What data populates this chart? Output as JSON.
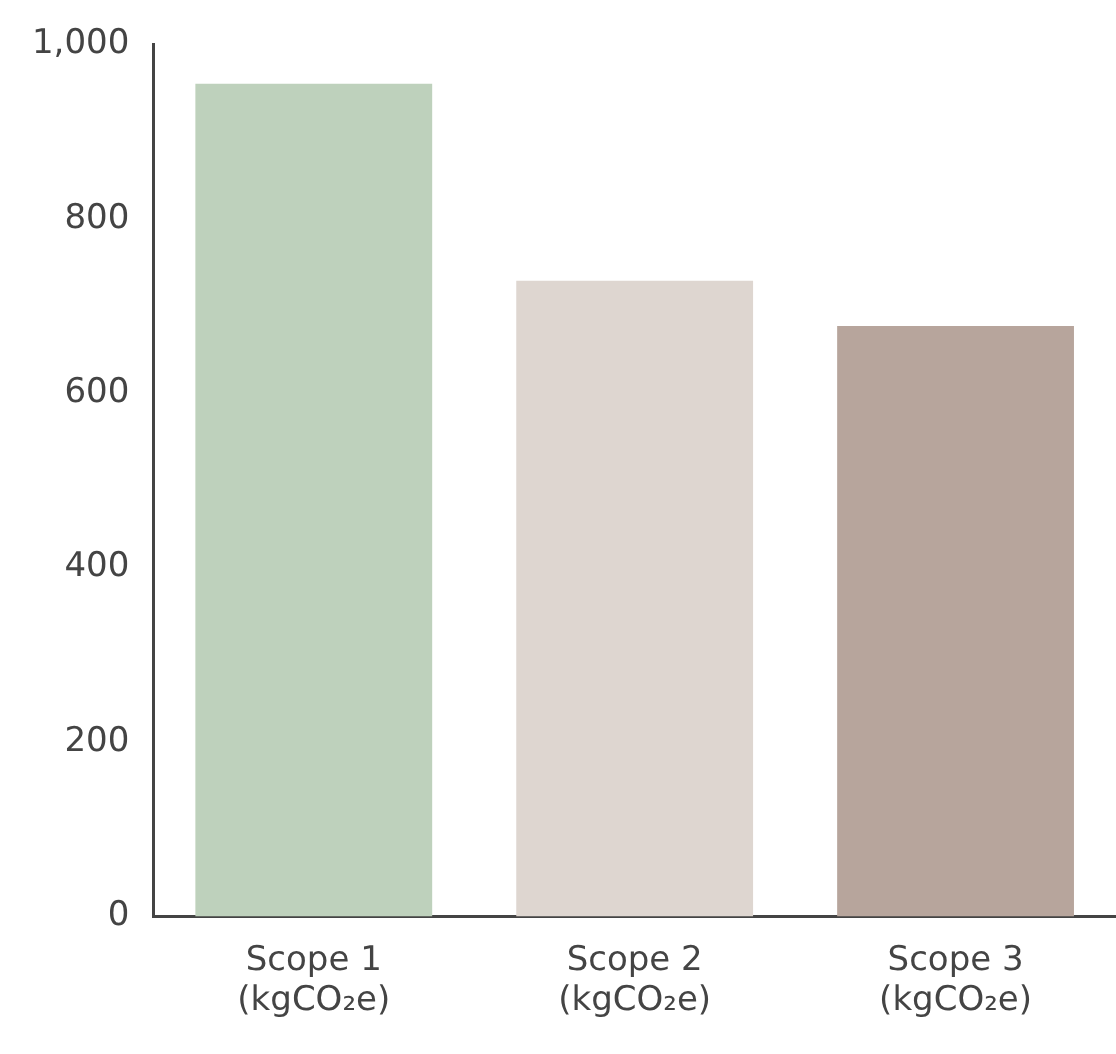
{
  "chart_data": {
    "type": "bar",
    "categories": [
      "Scope 1\n(kgCO₂e)",
      "Scope 2\n(kgCO₂e)",
      "Scope 3\n(kgCO₂e)"
    ],
    "values": [
      955,
      729,
      677
    ],
    "colors": [
      "#bed1bc",
      "#ded6d0",
      "#b7a59c"
    ],
    "ylim": [
      0,
      1000
    ],
    "yticks": [
      0,
      200,
      400,
      600,
      800,
      {
        "value": 1000,
        "label": "1,000"
      }
    ],
    "grid": false,
    "legend": false
  }
}
